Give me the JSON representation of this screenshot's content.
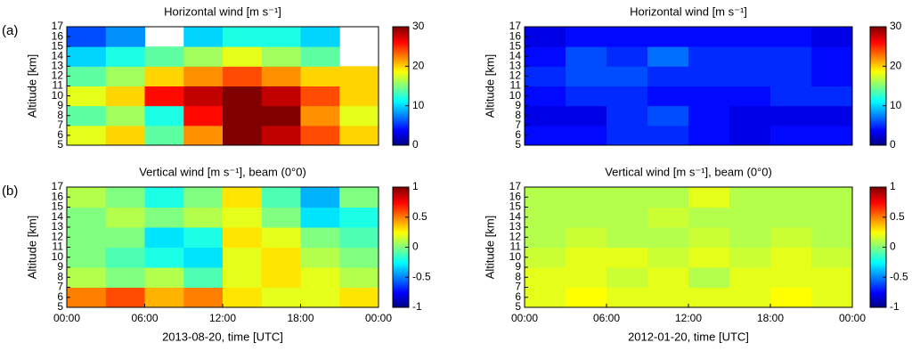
{
  "chart_data": [
    {
      "type": "heatmap",
      "panel_label": "(a)",
      "title": "Horizontal wind [m s⁻¹]",
      "ylabel": "Altitude [km]",
      "colormap": "jet",
      "xlim": [
        0,
        24
      ],
      "ylim": [
        5,
        17
      ],
      "yticks": [
        5,
        6,
        7,
        8,
        9,
        10,
        11,
        12,
        13,
        14,
        15,
        16,
        17
      ],
      "xbins": [
        0,
        3,
        6,
        9,
        12,
        15,
        18,
        21,
        24
      ],
      "ybins": [
        5,
        7,
        9,
        11,
        13,
        15,
        17
      ],
      "values": [
        [
          18,
          20,
          14,
          22,
          30,
          28,
          24,
          20
        ],
        [
          14,
          16,
          12,
          26,
          30,
          30,
          22,
          18
        ],
        [
          18,
          20,
          26,
          28,
          30,
          28,
          24,
          20
        ],
        [
          14,
          16,
          20,
          22,
          24,
          22,
          20,
          20
        ],
        [
          10,
          12,
          14,
          16,
          18,
          16,
          14,
          null
        ],
        [
          6,
          8,
          null,
          10,
          12,
          12,
          10,
          null
        ]
      ],
      "zlim": [
        0,
        30
      ],
      "zticks": [
        0,
        10,
        20,
        30
      ]
    },
    {
      "type": "heatmap",
      "title": "Horizontal wind [m s⁻¹]",
      "ylabel": "Altitude [km]",
      "colormap": "jet",
      "xlim": [
        0,
        24
      ],
      "ylim": [
        5,
        17
      ],
      "yticks": [
        5,
        6,
        7,
        8,
        9,
        10,
        11,
        12,
        13,
        14,
        15,
        16,
        17
      ],
      "xbins": [
        0,
        3,
        6,
        9,
        12,
        15,
        18,
        21,
        24
      ],
      "ybins": [
        5,
        7,
        9,
        11,
        13,
        15,
        17
      ],
      "values": [
        [
          4,
          4,
          5,
          5,
          4,
          3,
          4,
          4
        ],
        [
          3,
          3,
          5,
          6,
          4,
          3,
          3,
          3
        ],
        [
          4,
          5,
          5,
          4,
          4,
          4,
          5,
          5
        ],
        [
          5,
          6,
          6,
          5,
          5,
          5,
          5,
          4
        ],
        [
          4,
          6,
          5,
          7,
          5,
          5,
          5,
          4
        ],
        [
          3,
          4,
          4,
          4,
          4,
          4,
          4,
          3
        ]
      ],
      "zlim": [
        0,
        30
      ],
      "zticks": [
        0,
        10,
        20,
        30
      ]
    },
    {
      "type": "heatmap",
      "panel_label": "(b)",
      "title": "Vertical wind [m s⁻¹], beam (0°0)",
      "ylabel": "Altitude [km]",
      "xlabel": "2013-08-20, time [UTC]",
      "colormap": "jet",
      "xlim": [
        0,
        24
      ],
      "ylim": [
        5,
        17
      ],
      "yticks": [
        5,
        6,
        7,
        8,
        9,
        10,
        11,
        12,
        13,
        14,
        15,
        16,
        17
      ],
      "xticks": [
        {
          "value": 0,
          "label": "00:00"
        },
        {
          "value": 6,
          "label": "06:00"
        },
        {
          "value": 12,
          "label": "12:00"
        },
        {
          "value": 18,
          "label": "18:00"
        },
        {
          "value": 24,
          "label": "00:00"
        }
      ],
      "xbins": [
        0,
        3,
        6,
        9,
        12,
        15,
        18,
        21,
        24
      ],
      "ybins": [
        5,
        7,
        9,
        11,
        13,
        15,
        17
      ],
      "values": [
        [
          0.5,
          0.6,
          0.4,
          0.5,
          0.3,
          0.2,
          0.2,
          0.3
        ],
        [
          0.1,
          0,
          0.1,
          -0.1,
          0.2,
          0.3,
          0.2,
          0.1
        ],
        [
          0,
          -0.1,
          -0.2,
          -0.3,
          0.2,
          0.3,
          0.1,
          0
        ],
        [
          0,
          0,
          -0.3,
          -0.2,
          0.3,
          0.2,
          0,
          -0.1
        ],
        [
          0,
          0.1,
          0,
          0.1,
          0.2,
          0,
          -0.3,
          -0.2
        ],
        [
          0.1,
          0,
          -0.2,
          0,
          0.3,
          -0.1,
          -0.4,
          0
        ]
      ],
      "zlim": [
        -1,
        1
      ],
      "zticks": [
        -1,
        -0.5,
        0,
        0.5,
        1
      ]
    },
    {
      "type": "heatmap",
      "title": "Vertical wind [m s⁻¹], beam (0°0)",
      "ylabel": "Altitude [km]",
      "xlabel": "2012-01-20, time [UTC]",
      "colormap": "jet",
      "xlim": [
        0,
        24
      ],
      "ylim": [
        5,
        17
      ],
      "yticks": [
        5,
        6,
        7,
        8,
        9,
        10,
        11,
        12,
        13,
        14,
        15,
        16,
        17
      ],
      "xticks": [
        {
          "value": 0,
          "label": "00:00"
        },
        {
          "value": 6,
          "label": "06:00"
        },
        {
          "value": 12,
          "label": "12:00"
        },
        {
          "value": 18,
          "label": "18:00"
        },
        {
          "value": 24,
          "label": "00:00"
        }
      ],
      "xbins": [
        0,
        3,
        6,
        9,
        12,
        15,
        18,
        21,
        24
      ],
      "ybins": [
        5,
        7,
        9,
        11,
        13,
        15,
        17
      ],
      "values": [
        [
          0.2,
          0.25,
          0.2,
          0.2,
          0.2,
          0.2,
          0.25,
          0.2
        ],
        [
          0.2,
          0.2,
          0.15,
          0.2,
          0.1,
          0.2,
          0.2,
          0.2
        ],
        [
          0.15,
          0.2,
          0.2,
          0.15,
          0.2,
          0.15,
          0.2,
          0.15
        ],
        [
          0.1,
          0.15,
          0.1,
          0.1,
          0.15,
          0.1,
          0.15,
          0.1
        ],
        [
          0.1,
          0.1,
          0.1,
          0.15,
          0.1,
          0.1,
          0.1,
          0.1
        ],
        [
          0.1,
          0.1,
          0.1,
          0.1,
          0.2,
          0.1,
          0.1,
          0.1
        ]
      ],
      "zlim": [
        -1,
        1
      ],
      "zticks": [
        -1,
        -0.5,
        0,
        0.5,
        1
      ]
    }
  ]
}
